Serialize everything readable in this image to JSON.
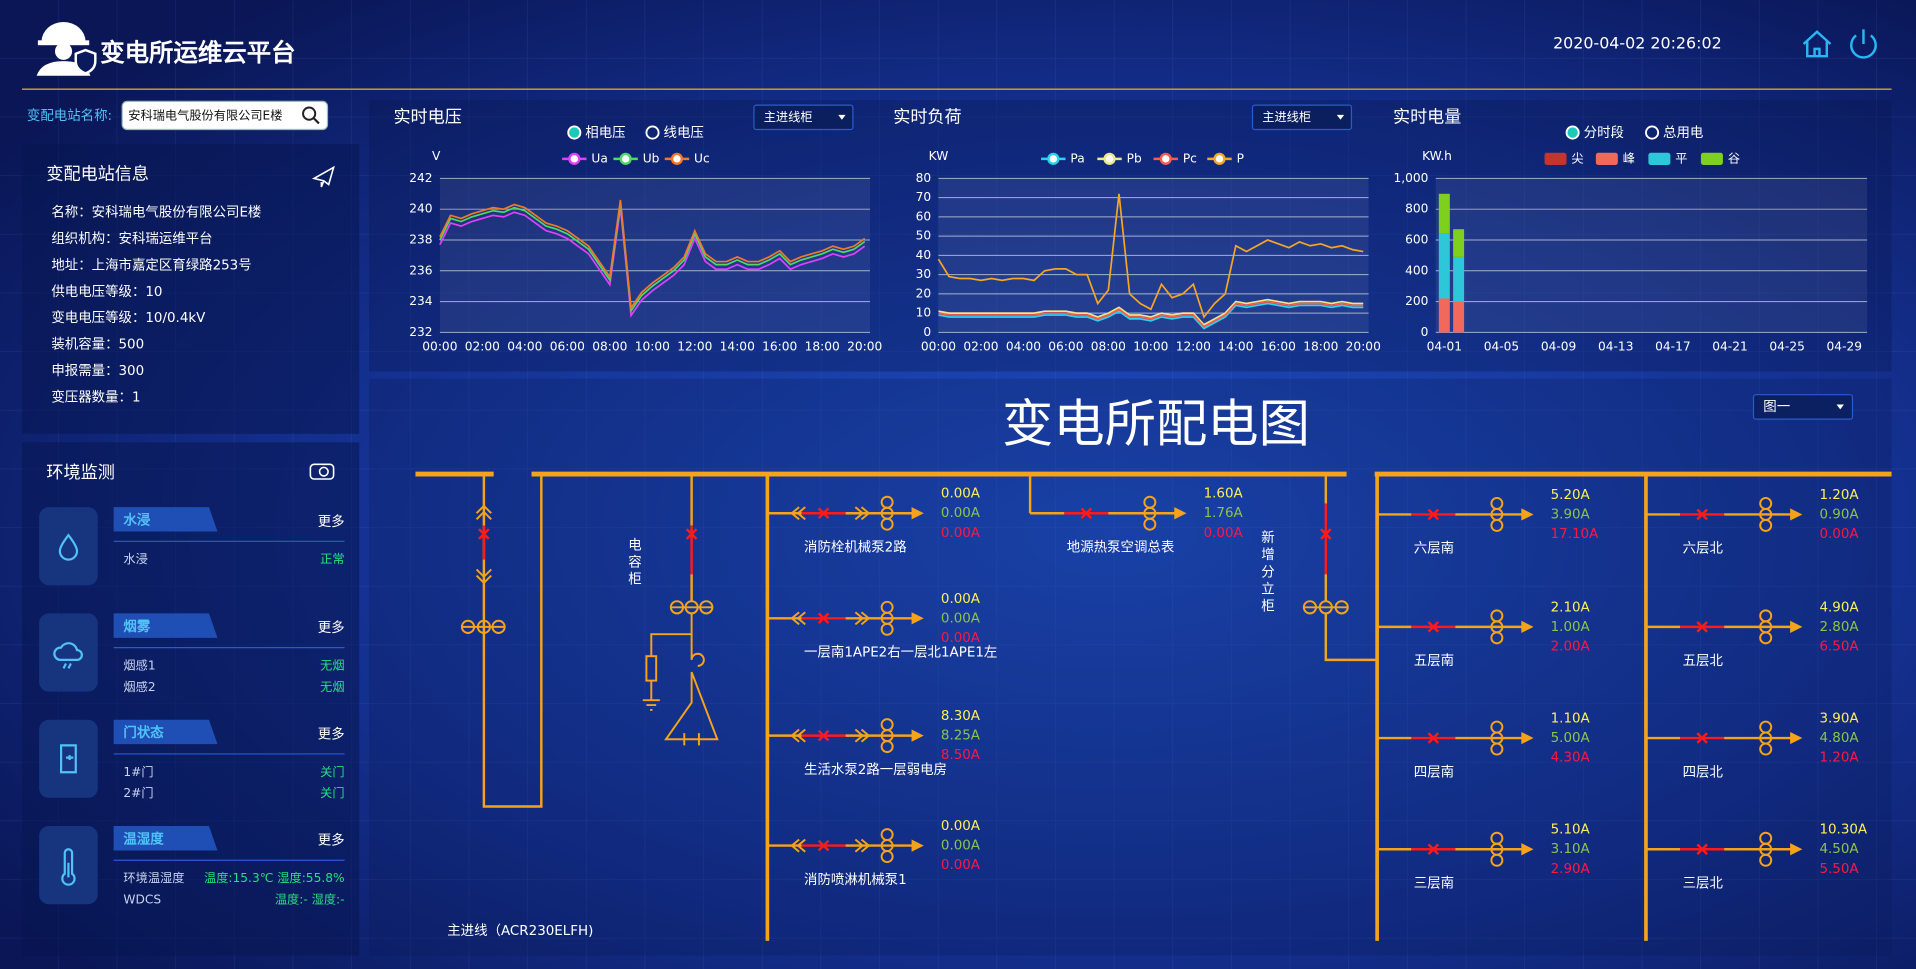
{
  "header": {
    "title": "变电所运维云平台",
    "datetime": "2020-04-02 20:26:02"
  },
  "search": {
    "label": "变配电站名称:",
    "value": "安科瑞电气股份有限公司E楼"
  },
  "station_info": {
    "title": "变配电站信息",
    "rows": [
      "名称：安科瑞电气股份有限公司E楼",
      "组织机构：安科瑞运维平台",
      "地址：上海市嘉定区育绿路253号",
      "供电电压等级：10",
      "变电电压等级：10/0.4kV",
      "装机容量：500",
      "申报需量：300",
      "变压器数量：1"
    ]
  },
  "environment": {
    "title": "环境监测",
    "groups": [
      {
        "name": "水浸",
        "more": "更多",
        "items": [
          {
            "label": "水浸",
            "status": "正常"
          }
        ]
      },
      {
        "name": "烟雾",
        "more": "更多",
        "items": [
          {
            "label": "烟感1",
            "status": "无烟"
          },
          {
            "label": "烟感2",
            "status": "无烟"
          }
        ]
      },
      {
        "name": "门状态",
        "more": "更多",
        "items": [
          {
            "label": "1#门",
            "status": "关门"
          },
          {
            "label": "2#门",
            "status": "关门"
          }
        ]
      },
      {
        "name": "温湿度",
        "more": "更多",
        "items": [
          {
            "label": "环境温湿度",
            "status": "温度:15.3℃ 湿度:55.8%"
          },
          {
            "label": "WDCS",
            "status": "温度:- 湿度:-"
          }
        ]
      }
    ]
  },
  "chart_data": [
    {
      "type": "line",
      "title": "实时电压",
      "options": [
        "相电压",
        "线电压"
      ],
      "dropdown": "主进线柜",
      "y_label": "V",
      "grid": true,
      "categories": [
        "00:00",
        null,
        null,
        null,
        "02:00",
        null,
        null,
        null,
        "04:00",
        null,
        null,
        null,
        "06:00",
        null,
        null,
        null,
        "08:00",
        null,
        null,
        null,
        "10:00",
        null,
        null,
        null,
        "12:00",
        null,
        null,
        null,
        "14:00",
        null,
        null,
        null,
        "16:00",
        null,
        null,
        null,
        "18:00",
        null,
        null,
        null,
        "20:00"
      ],
      "ylim": [
        232,
        242
      ],
      "yticks": [
        232,
        234,
        236,
        238,
        240,
        242
      ],
      "series": [
        {
          "name": "Ua",
          "color": "#e040fb",
          "values": [
            237.7,
            239.1,
            238.9,
            239.2,
            239.4,
            239.6,
            239.5,
            239.8,
            239.6,
            239.1,
            238.6,
            238.4,
            238.1,
            237.6,
            237.1,
            236.1,
            235.1,
            240.1,
            233.1,
            234.1,
            234.7,
            235.2,
            235.7,
            236.4,
            238.1,
            236.6,
            236.1,
            236.1,
            236.4,
            236.1,
            236.1,
            236.4,
            236.8,
            236.1,
            236.4,
            236.6,
            236.8,
            237.1,
            236.9,
            237.1,
            237.6
          ]
        },
        {
          "name": "Ub",
          "color": "#4cd964",
          "values": [
            238.0,
            239.4,
            239.2,
            239.5,
            239.7,
            239.9,
            239.8,
            240.1,
            239.9,
            239.4,
            238.9,
            238.7,
            238.4,
            237.9,
            237.4,
            236.4,
            235.4,
            240.4,
            233.4,
            234.4,
            235.0,
            235.5,
            236.0,
            236.7,
            238.4,
            236.9,
            236.4,
            236.4,
            236.7,
            236.4,
            236.4,
            236.7,
            237.1,
            236.4,
            236.7,
            236.9,
            237.1,
            237.4,
            237.2,
            237.4,
            237.9
          ]
        },
        {
          "name": "Uc",
          "color": "#f0782a",
          "values": [
            238.2,
            239.6,
            239.4,
            239.7,
            239.9,
            240.1,
            240.0,
            240.3,
            240.1,
            239.6,
            239.1,
            238.9,
            238.6,
            238.1,
            237.6,
            236.6,
            235.6,
            240.6,
            233.6,
            234.6,
            235.2,
            235.7,
            236.2,
            236.9,
            238.6,
            237.1,
            236.6,
            236.6,
            236.9,
            236.6,
            236.6,
            236.9,
            237.3,
            236.6,
            236.9,
            237.1,
            237.3,
            237.6,
            237.4,
            237.6,
            238.1
          ]
        }
      ]
    },
    {
      "type": "line",
      "title": "实时负荷",
      "dropdown": "主进线柜",
      "y_label": "KW",
      "grid": true,
      "categories": [
        "00:00",
        null,
        null,
        null,
        "02:00",
        null,
        null,
        null,
        "04:00",
        null,
        null,
        null,
        "06:00",
        null,
        null,
        null,
        "08:00",
        null,
        null,
        null,
        "10:00",
        null,
        null,
        null,
        "12:00",
        null,
        null,
        null,
        "14:00",
        null,
        null,
        null,
        "16:00",
        null,
        null,
        null,
        "18:00",
        null,
        null,
        null,
        "20:00"
      ],
      "ylim": [
        0,
        80
      ],
      "yticks": [
        0,
        10,
        20,
        30,
        40,
        50,
        60,
        70,
        80
      ],
      "series": [
        {
          "name": "Pa",
          "color": "#29d3f0",
          "values": [
            9,
            8,
            8,
            8,
            8,
            8,
            8,
            8,
            8,
            8,
            9,
            9,
            9,
            8,
            8,
            6,
            8,
            11,
            7,
            7,
            6,
            8,
            7,
            8,
            8,
            2,
            5,
            8,
            14,
            13,
            14,
            15,
            14,
            13,
            14,
            14,
            14,
            13,
            14,
            13,
            13
          ]
        },
        {
          "name": "Pb",
          "color": "#f0e68c",
          "values": [
            11,
            10,
            10,
            10,
            10,
            10,
            10,
            10,
            10,
            10,
            11,
            11,
            11,
            10,
            10,
            8,
            10,
            13,
            9,
            9,
            8,
            10,
            9,
            10,
            10,
            4,
            7,
            10,
            16,
            15,
            16,
            17,
            16,
            15,
            16,
            16,
            16,
            15,
            16,
            15,
            15
          ]
        },
        {
          "name": "Pc",
          "color": "#ff5a4a",
          "values": [
            10,
            9,
            9,
            9,
            9,
            9,
            9,
            9,
            9,
            9,
            10,
            10,
            10,
            9,
            9,
            7,
            9,
            12,
            8,
            8,
            7,
            9,
            8,
            9,
            9,
            3,
            6,
            9,
            15,
            14,
            15,
            16,
            15,
            14,
            15,
            15,
            15,
            14,
            15,
            14,
            14
          ]
        },
        {
          "name": "P",
          "color": "#f5a623",
          "values": [
            38,
            29,
            28,
            28,
            27,
            28,
            27,
            28,
            28,
            27,
            32,
            33,
            33,
            30,
            30,
            15,
            22,
            72,
            20,
            15,
            12,
            25,
            18,
            20,
            25,
            8,
            15,
            20,
            45,
            42,
            45,
            48,
            46,
            44,
            47,
            45,
            46,
            44,
            45,
            43,
            42
          ]
        }
      ]
    },
    {
      "type": "bar",
      "stacked": true,
      "title": "实时电量",
      "options": [
        "分时段",
        "总用电"
      ],
      "y_label": "KW.h",
      "grid": true,
      "categories": [
        "04-01",
        null,
        null,
        null,
        "04-05",
        null,
        null,
        null,
        "04-09",
        null,
        null,
        null,
        "04-13",
        null,
        null,
        null,
        "04-17",
        null,
        null,
        null,
        "04-21",
        null,
        null,
        null,
        "04-25",
        null,
        null,
        null,
        "04-29",
        null
      ],
      "ylim": [
        0,
        1000
      ],
      "yticks": [
        0,
        200,
        400,
        600,
        800,
        {
          "value": 1000,
          "label": "1,000"
        }
      ],
      "series": [
        {
          "name": "尖",
          "color": "#c23531",
          "values": [
            0,
            0,
            null,
            null,
            null,
            null,
            null,
            null,
            null,
            null,
            null,
            null,
            null,
            null,
            null,
            null,
            null,
            null,
            null,
            null,
            null,
            null,
            null,
            null,
            null,
            null,
            null,
            null,
            null,
            null
          ]
        },
        {
          "name": "峰",
          "color": "#f0695a",
          "values": [
            220,
            200,
            null,
            null,
            null,
            null,
            null,
            null,
            null,
            null,
            null,
            null,
            null,
            null,
            null,
            null,
            null,
            null,
            null,
            null,
            null,
            null,
            null,
            null,
            null,
            null,
            null,
            null,
            null,
            null
          ]
        },
        {
          "name": "平",
          "color": "#2ec7d9",
          "values": [
            420,
            290,
            null,
            null,
            null,
            null,
            null,
            null,
            null,
            null,
            null,
            null,
            null,
            null,
            null,
            null,
            null,
            null,
            null,
            null,
            null,
            null,
            null,
            null,
            null,
            null,
            null,
            null,
            null,
            null
          ]
        },
        {
          "name": "谷",
          "color": "#7ecf1e",
          "values": [
            260,
            180,
            null,
            null,
            null,
            null,
            null,
            null,
            null,
            null,
            null,
            null,
            null,
            null,
            null,
            null,
            null,
            null,
            null,
            null,
            null,
            null,
            null,
            null,
            null,
            null,
            null,
            null,
            null,
            null
          ]
        }
      ]
    }
  ],
  "diagram": {
    "title": "变电所配电图",
    "dropdown": "图一",
    "incomer_label": "主进线（ACR230ELFH)",
    "capacitor_label": "电容柜",
    "cabinet_label": "新增分立柜",
    "columns": [
      {
        "feeders": [
          {
            "name": "消防栓机械泵2路",
            "currents": [
              "0.00A",
              "0.00A",
              "0.00A"
            ]
          },
          {
            "name": "一层南1APE2右一层北1APE1左",
            "currents": [
              "0.00A",
              "0.00A",
              "0.00A"
            ]
          },
          {
            "name": "生活水泵2路一层弱电房",
            "currents": [
              "8.30A",
              "8.25A",
              "8.50A"
            ]
          },
          {
            "name": "消防喷淋机械泵1",
            "currents": [
              "0.00A",
              "0.00A",
              "0.00A"
            ]
          }
        ]
      },
      {
        "feeders": [
          {
            "name": "地源热泵空调总表",
            "currents": [
              "1.60A",
              "1.76A",
              "0.00A"
            ]
          }
        ]
      },
      {
        "feeders": [
          {
            "name": "六层南",
            "currents": [
              "5.20A",
              "3.90A",
              "17.10A"
            ]
          },
          {
            "name": "五层南",
            "currents": [
              "2.10A",
              "1.00A",
              "2.00A"
            ]
          },
          {
            "name": "四层南",
            "currents": [
              "1.10A",
              "5.00A",
              "4.30A"
            ]
          },
          {
            "name": "三层南",
            "currents": [
              "5.10A",
              "3.10A",
              "2.90A"
            ]
          }
        ]
      },
      {
        "feeders": [
          {
            "name": "六层北",
            "currents": [
              "1.20A",
              "0.90A",
              "0.00A"
            ]
          },
          {
            "name": "五层北",
            "currents": [
              "4.90A",
              "2.80A",
              "6.50A"
            ]
          },
          {
            "name": "四层北",
            "currents": [
              "3.90A",
              "4.80A",
              "1.20A"
            ]
          },
          {
            "name": "三层北",
            "currents": [
              "10.30A",
              "4.50A",
              "5.50A"
            ]
          }
        ]
      }
    ]
  }
}
